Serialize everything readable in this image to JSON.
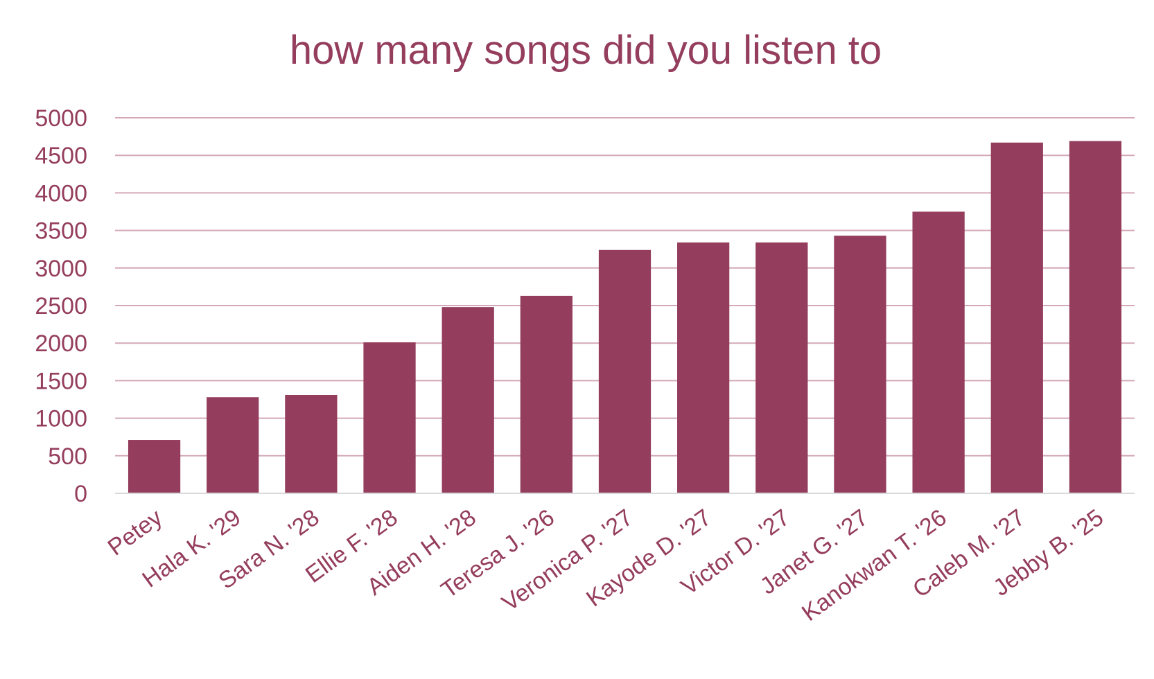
{
  "chart_data": {
    "type": "bar",
    "title": "how many songs did you listen to",
    "xlabel": "",
    "ylabel": "",
    "categories": [
      "Petey",
      "Hala K. '29",
      "Sara N. '28",
      "Ellie F. '28",
      "Aiden H. '28",
      "Teresa J. '26",
      "Veronica P. '27",
      "Kayode D. '27",
      "Victor D. '27",
      "Janet G. '27",
      "Kanokwan T. '26",
      "Caleb M. '27",
      "Jebby B. '25"
    ],
    "values": [
      710,
      1280,
      1310,
      2010,
      2480,
      2630,
      3240,
      3340,
      3340,
      3430,
      3750,
      4670,
      4690
    ],
    "ylim": [
      0,
      5000
    ],
    "yticks": [
      "0",
      "500",
      "1000",
      "1500",
      "2000",
      "2500",
      "3000",
      "3500",
      "4000",
      "4500",
      "5000"
    ],
    "grid": true,
    "legend": "none",
    "colors": {
      "bar": "#943d5c",
      "text": "#943d5c",
      "grid": "#d4a8b8",
      "axis": "#d9d9d9"
    }
  }
}
